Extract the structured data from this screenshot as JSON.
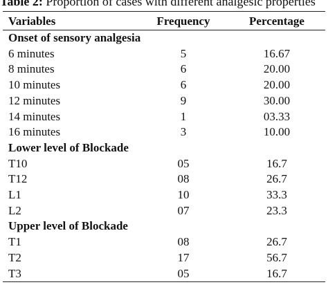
{
  "caption": {
    "label": "Table 2:",
    "text": " Proportion of cases with different analgesic properties"
  },
  "table": {
    "headers": [
      "Variables",
      "Frequency",
      "Percentage"
    ],
    "sections": [
      {
        "title": "Onset of sensory analgesia",
        "rows": [
          [
            "6 minutes",
            "5",
            "16.67"
          ],
          [
            "8 minutes",
            "6",
            "20.00"
          ],
          [
            "10 minutes",
            "6",
            "20.00"
          ],
          [
            "12 minutes",
            "9",
            "30.00"
          ],
          [
            "14 minutes",
            "1",
            "03.33"
          ],
          [
            "16 minutes",
            "3",
            "10.00"
          ]
        ]
      },
      {
        "title": "Lower level of Blockade",
        "rows": [
          [
            "T10",
            "05",
            "16.7"
          ],
          [
            "T12",
            "08",
            "26.7"
          ],
          [
            "L1",
            "10",
            "33.3"
          ],
          [
            "L2",
            "07",
            "23.3"
          ]
        ]
      },
      {
        "title": "Upper level of Blockade",
        "rows": [
          [
            "T1",
            "08",
            "26.7"
          ],
          [
            "T2",
            "17",
            "56.7"
          ],
          [
            "T3",
            "05",
            "16.7"
          ]
        ]
      }
    ]
  }
}
